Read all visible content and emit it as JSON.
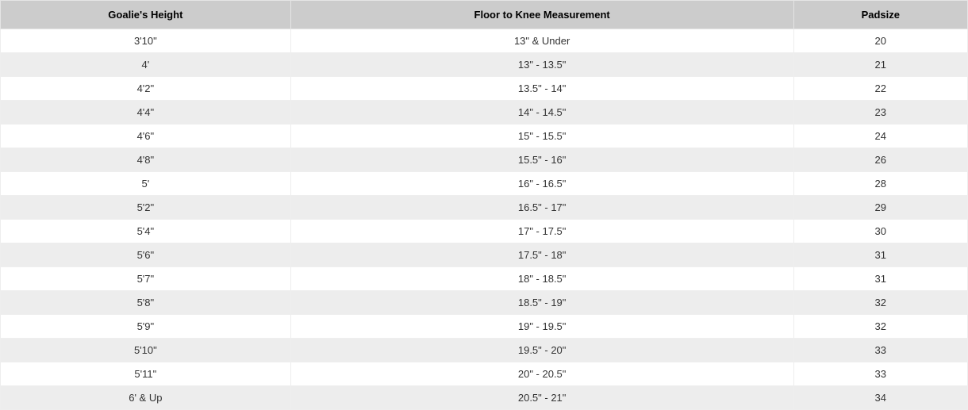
{
  "table": {
    "type": "table",
    "header_bg": "#cccccc",
    "row_bg_odd": "#ffffff",
    "row_bg_even": "#ededed",
    "border_color": "#eeeeee",
    "text_color": "#333333",
    "font_family": "Arial",
    "header_fontsize": 13,
    "cell_fontsize": 13,
    "columns": [
      {
        "label": "Goalie's Height",
        "width_pct": 30
      },
      {
        "label": "Floor to Knee Measurement",
        "width_pct": 52
      },
      {
        "label": "Padsize",
        "width_pct": 18
      }
    ],
    "rows": [
      [
        "3'10\"",
        "13\" & Under",
        "20"
      ],
      [
        "4'",
        "13\" - 13.5\"",
        "21"
      ],
      [
        "4'2\"",
        "13.5\" - 14\"",
        "22"
      ],
      [
        "4'4\"",
        "14\" - 14.5\"",
        "23"
      ],
      [
        "4'6\"",
        "15\" - 15.5\"",
        "24"
      ],
      [
        "4'8\"",
        "15.5\" - 16\"",
        "26"
      ],
      [
        "5'",
        "16\" - 16.5\"",
        "28"
      ],
      [
        "5'2\"",
        "16.5\" - 17\"",
        "29"
      ],
      [
        "5'4\"",
        "17\" - 17.5\"",
        "30"
      ],
      [
        "5'6\"",
        "17.5\" - 18\"",
        "31"
      ],
      [
        "5'7\"",
        "18\" - 18.5\"",
        "31"
      ],
      [
        "5'8\"",
        "18.5\" - 19\"",
        "32"
      ],
      [
        "5'9\"",
        "19\" - 19.5\"",
        "32"
      ],
      [
        "5'10\"",
        "19.5\" - 20\"",
        "33"
      ],
      [
        "5'11\"",
        "20\" - 20.5\"",
        "33"
      ],
      [
        "6' & Up",
        "20.5\" - 21\"",
        "34"
      ]
    ]
  }
}
